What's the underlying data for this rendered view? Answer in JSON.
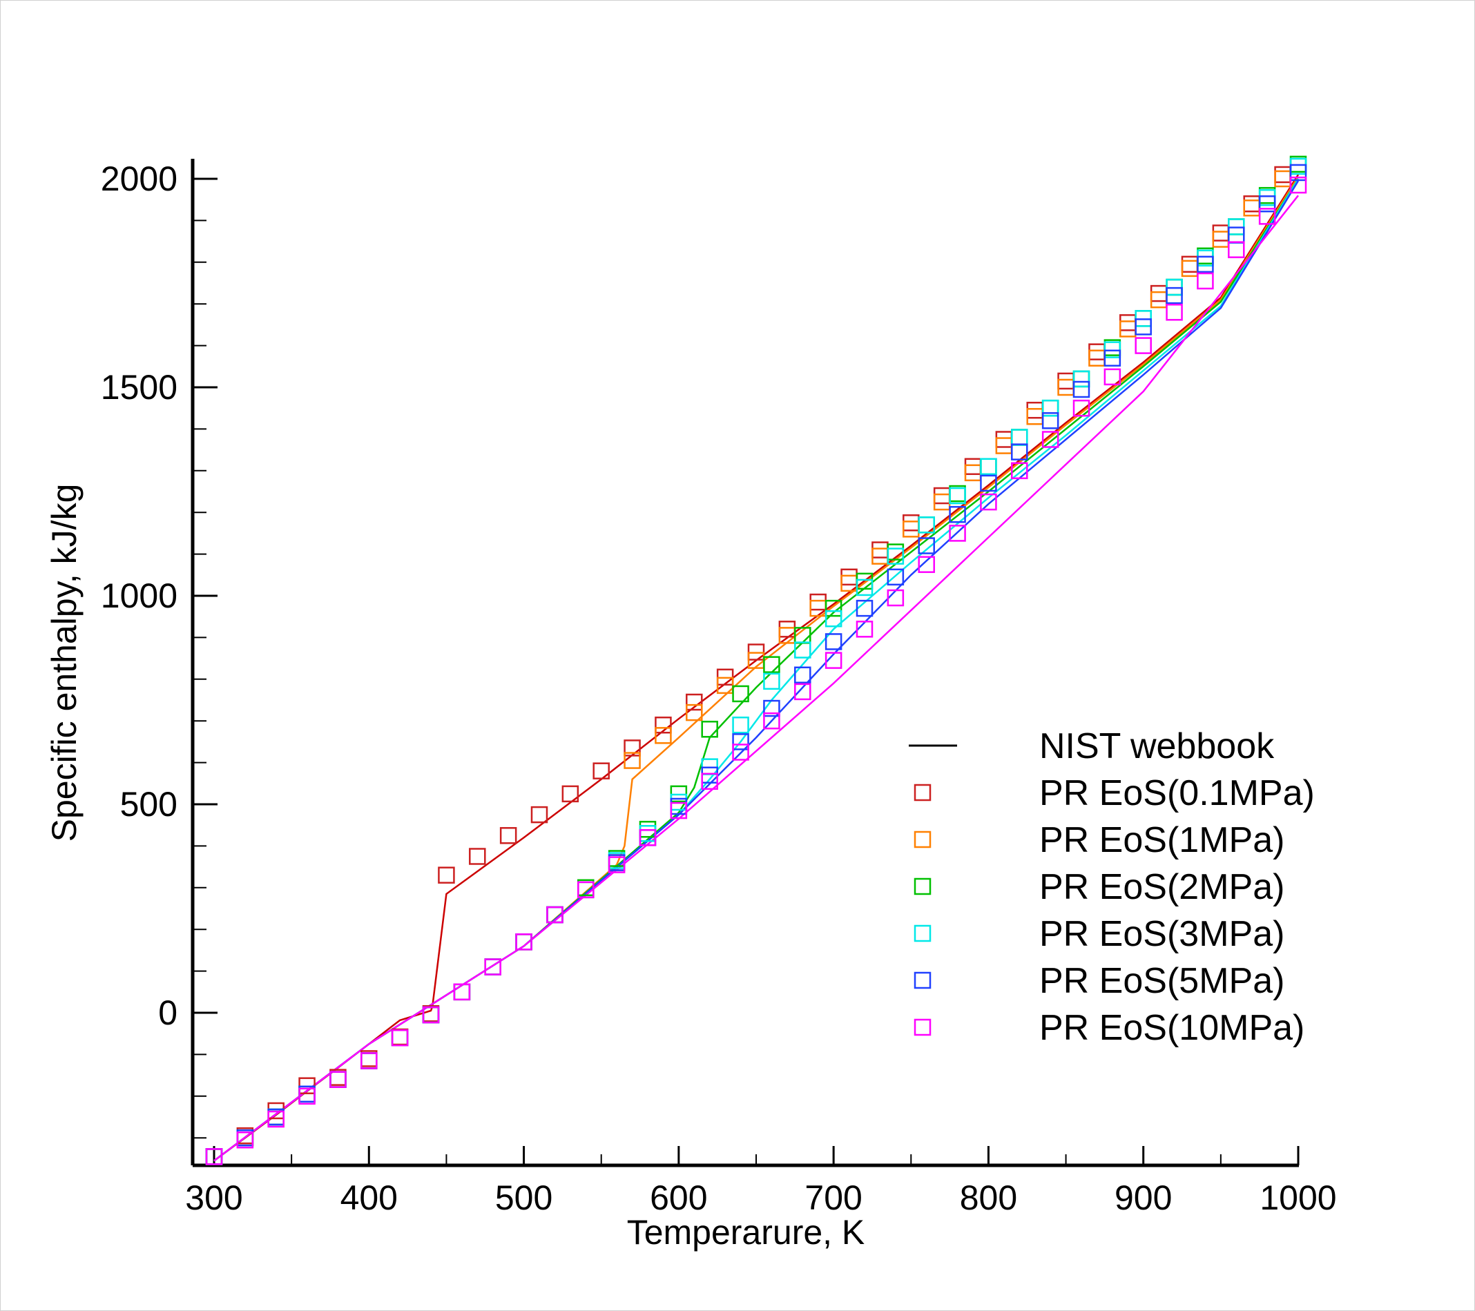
{
  "chart_data": {
    "type": "scatter",
    "xlabel": "Temperarure, K",
    "ylabel": "Specific enthalpy, kJ/kg",
    "xlim": [
      290,
      1000
    ],
    "ylim": [
      -360,
      2050
    ],
    "x_ticks": [
      "300",
      "400",
      "500",
      "600",
      "700",
      "800",
      "900",
      "1000"
    ],
    "y_ticks": [
      "0",
      "500",
      "1000",
      "1500",
      "2000"
    ],
    "legend_position": "bottom-right",
    "grid": false,
    "series": [
      {
        "name": "NIST webbook",
        "kind": "line-set",
        "color": "#000000",
        "curves": [
          {
            "color": "#cc0000",
            "x": [
              300,
              320,
              340,
              360,
              380,
              400,
              420,
              440,
              441,
              450,
              500,
              550,
              600,
              650,
              700,
              750,
              800,
              850,
              900,
              950,
              1000
            ],
            "y": [
              -355,
              -300,
              -245,
              -188,
              -132,
              -75,
              -18,
              5,
              15,
              285,
              420,
              560,
              705,
              845,
              980,
              1120,
              1265,
              1415,
              1560,
              1715,
              2010
            ]
          },
          {
            "color": "#ff8000",
            "x": [
              300,
              400,
              500,
              560,
              565,
              570,
              600,
              650,
              700,
              750,
              800,
              850,
              900,
              950,
              1000
            ],
            "y": [
              -355,
              -75,
              160,
              355,
              400,
              560,
              660,
              830,
              975,
              1115,
              1260,
              1410,
              1555,
              1710,
              2005
            ]
          },
          {
            "color": "#00c000",
            "x": [
              300,
              400,
              500,
              600,
              610,
              620,
              650,
              700,
              750,
              800,
              850,
              900,
              950,
              1000
            ],
            "y": [
              -355,
              -75,
              160,
              480,
              540,
              660,
              780,
              960,
              1105,
              1250,
              1400,
              1550,
              1705,
              2000
            ]
          },
          {
            "color": "#00e8e8",
            "x": [
              300,
              400,
              500,
              600,
              620,
              640,
              660,
              700,
              750,
              800,
              850,
              900,
              950,
              1000
            ],
            "y": [
              -355,
              -75,
              160,
              475,
              560,
              650,
              750,
              920,
              1080,
              1235,
              1385,
              1540,
              1695,
              2000
            ]
          },
          {
            "color": "#2040ff",
            "x": [
              300,
              400,
              500,
              600,
              650,
              700,
              750,
              800,
              850,
              900,
              950,
              1000
            ],
            "y": [
              -355,
              -75,
              160,
              475,
              660,
              860,
              1050,
              1220,
              1375,
              1530,
              1690,
              1995
            ]
          },
          {
            "color": "#ff00ff",
            "x": [
              300,
              400,
              500,
              600,
              700,
              800,
              900,
              1000
            ],
            "y": [
              -355,
              -75,
              160,
              465,
              790,
              1140,
              1490,
              1960
            ]
          }
        ]
      },
      {
        "name": "PR EoS(0.1MPa)",
        "kind": "markers",
        "color": "#cc2020",
        "x": [
          300,
          320,
          340,
          360,
          380,
          400,
          420,
          440,
          450,
          470,
          490,
          510,
          530,
          550,
          570,
          590,
          610,
          630,
          650,
          670,
          690,
          710,
          730,
          750,
          770,
          790,
          810,
          830,
          850,
          870,
          890,
          910,
          930,
          950,
          970,
          990
        ],
        "y": [
          -345,
          -295,
          -235,
          -175,
          -155,
          -110,
          -58,
          -2,
          330,
          375,
          425,
          475,
          525,
          580,
          635,
          690,
          745,
          805,
          865,
          920,
          985,
          1045,
          1110,
          1175,
          1240,
          1310,
          1375,
          1445,
          1515,
          1585,
          1655,
          1725,
          1795,
          1870,
          1940,
          2010
        ]
      },
      {
        "name": "PR EoS(1MPa)",
        "kind": "markers",
        "color": "#ff8000",
        "x": [
          300,
          320,
          340,
          360,
          380,
          400,
          420,
          440,
          460,
          480,
          500,
          520,
          540,
          560,
          570,
          590,
          610,
          630,
          650,
          670,
          690,
          710,
          730,
          750,
          770,
          790,
          810,
          830,
          850,
          870,
          890,
          910,
          930,
          950,
          970,
          990
        ],
        "y": [
          -345,
          -300,
          -250,
          -195,
          -160,
          -115,
          -60,
          -5,
          50,
          110,
          170,
          235,
          295,
          360,
          605,
          665,
          720,
          785,
          845,
          905,
          970,
          1030,
          1095,
          1160,
          1225,
          1295,
          1360,
          1430,
          1500,
          1570,
          1640,
          1710,
          1785,
          1855,
          1930,
          2000
        ]
      },
      {
        "name": "PR EoS(2MPa)",
        "kind": "markers",
        "color": "#00c000",
        "x": [
          300,
          320,
          340,
          360,
          380,
          400,
          420,
          440,
          460,
          480,
          500,
          520,
          540,
          560,
          580,
          600,
          620,
          640,
          660,
          680,
          700,
          720,
          740,
          760,
          780,
          800,
          820,
          840,
          860,
          880,
          900,
          920,
          940,
          960,
          980,
          1000
        ],
        "y": [
          -345,
          -300,
          -250,
          -195,
          -160,
          -115,
          -60,
          -5,
          50,
          110,
          170,
          235,
          300,
          370,
          440,
          525,
          680,
          765,
          835,
          905,
          970,
          1035,
          1105,
          1170,
          1245,
          1310,
          1380,
          1450,
          1520,
          1595,
          1665,
          1740,
          1815,
          1885,
          1960,
          2035
        ]
      },
      {
        "name": "PR EoS(3MPa)",
        "kind": "markers",
        "color": "#00e8e8",
        "x": [
          300,
          320,
          340,
          360,
          380,
          400,
          420,
          440,
          460,
          480,
          500,
          520,
          540,
          560,
          580,
          600,
          620,
          640,
          660,
          680,
          700,
          720,
          740,
          760,
          780,
          800,
          820,
          840,
          860,
          880,
          900,
          920,
          940,
          960,
          980,
          1000
        ],
        "y": [
          -345,
          -300,
          -250,
          -195,
          -160,
          -115,
          -60,
          -5,
          50,
          110,
          170,
          235,
          295,
          365,
          430,
          505,
          590,
          690,
          795,
          870,
          945,
          1020,
          1095,
          1170,
          1240,
          1310,
          1380,
          1450,
          1520,
          1590,
          1665,
          1740,
          1810,
          1885,
          1955,
          2030
        ]
      },
      {
        "name": "PR EoS(5MPa)",
        "kind": "markers",
        "color": "#2040ff",
        "x": [
          300,
          320,
          340,
          360,
          380,
          400,
          420,
          440,
          460,
          480,
          500,
          520,
          540,
          560,
          580,
          600,
          620,
          640,
          660,
          680,
          700,
          720,
          740,
          760,
          780,
          800,
          820,
          840,
          860,
          880,
          900,
          920,
          940,
          960,
          980,
          1000
        ],
        "y": [
          -345,
          -300,
          -250,
          -195,
          -160,
          -115,
          -60,
          -5,
          50,
          110,
          170,
          235,
          295,
          360,
          420,
          495,
          570,
          650,
          730,
          810,
          890,
          970,
          1045,
          1120,
          1195,
          1270,
          1345,
          1420,
          1495,
          1570,
          1645,
          1720,
          1795,
          1865,
          1940,
          2015
        ]
      },
      {
        "name": "PR EoS(10MPa)",
        "kind": "markers",
        "color": "#ff00ff",
        "x": [
          300,
          320,
          340,
          360,
          380,
          400,
          420,
          440,
          460,
          480,
          500,
          520,
          540,
          560,
          580,
          600,
          620,
          640,
          660,
          680,
          700,
          720,
          740,
          760,
          780,
          800,
          820,
          840,
          860,
          880,
          900,
          920,
          940,
          960,
          980,
          1000
        ],
        "y": [
          -345,
          -305,
          -255,
          -200,
          -160,
          -115,
          -60,
          -5,
          50,
          110,
          170,
          235,
          295,
          355,
          420,
          485,
          555,
          625,
          700,
          770,
          845,
          920,
          995,
          1075,
          1150,
          1225,
          1300,
          1375,
          1450,
          1525,
          1600,
          1680,
          1755,
          1830,
          1910,
          1985
        ]
      }
    ]
  }
}
